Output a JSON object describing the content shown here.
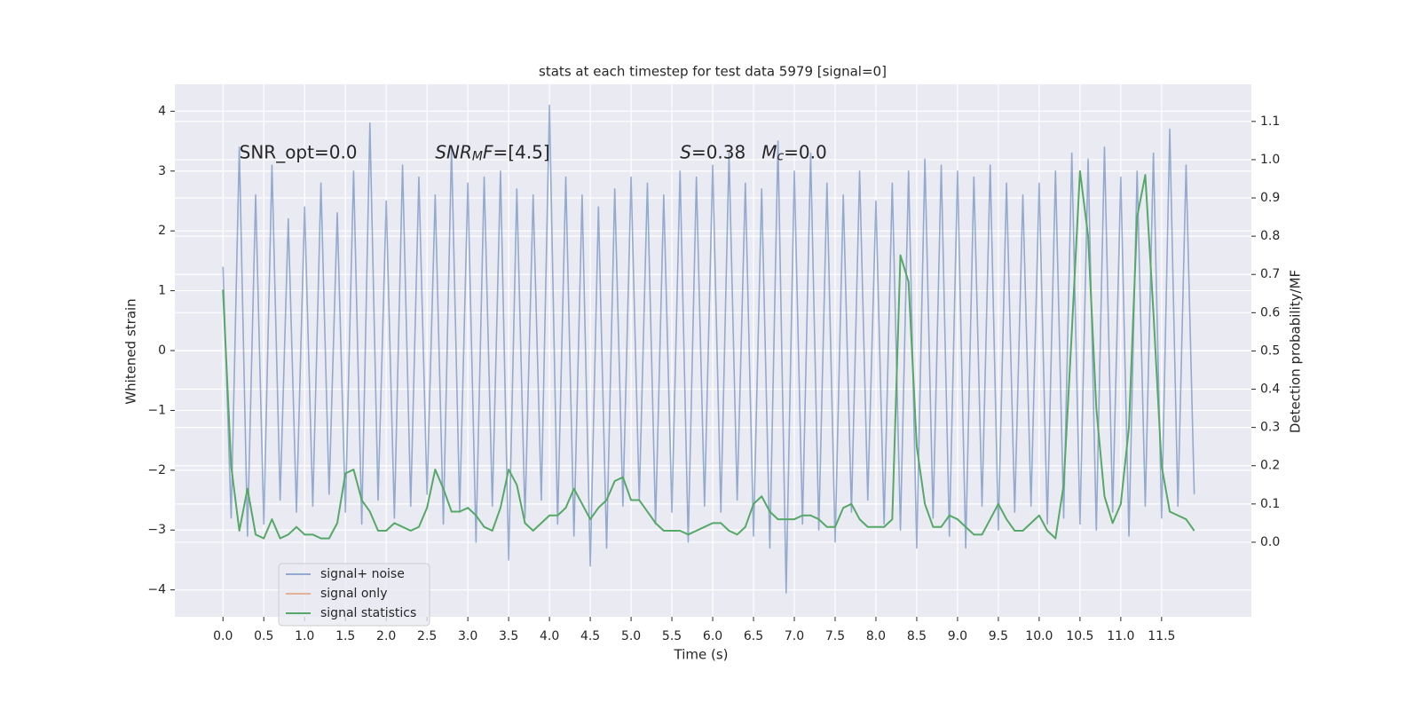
{
  "chart_data": {
    "type": "line",
    "title": "stats at each timestep for test data 5979 [signal=0]",
    "xlabel": "Time (s)",
    "ylabel": "Whitened strain",
    "y2label": "Detection probability/MF",
    "x": [
      0,
      0.1,
      0.2,
      0.3,
      0.4,
      0.5,
      0.6,
      0.7,
      0.8,
      0.9,
      1,
      1.1,
      1.2,
      1.3,
      1.4,
      1.5,
      1.6,
      1.7,
      1.8,
      1.9,
      2,
      2.1,
      2.2,
      2.3,
      2.4,
      2.5,
      2.6,
      2.7,
      2.8,
      2.9,
      3,
      3.1,
      3.2,
      3.3,
      3.4,
      3.5,
      3.6,
      3.7,
      3.8,
      3.9,
      4,
      4.1,
      4.2,
      4.3,
      4.4,
      4.5,
      4.6,
      4.7,
      4.8,
      4.9,
      5,
      5.1,
      5.2,
      5.3,
      5.4,
      5.5,
      5.6,
      5.7,
      5.8,
      5.9,
      6,
      6.1,
      6.2,
      6.3,
      6.4,
      6.5,
      6.6,
      6.7,
      6.8,
      6.9,
      7,
      7.1,
      7.2,
      7.3,
      7.4,
      7.5,
      7.6,
      7.7,
      7.8,
      7.9,
      8,
      8.1,
      8.2,
      8.3,
      8.4,
      8.5,
      8.6,
      8.7,
      8.8,
      8.9,
      9,
      9.1,
      9.2,
      9.3,
      9.4,
      9.5,
      9.6,
      9.7,
      9.8,
      9.9,
      10,
      10.1,
      10.2,
      10.3,
      10.4,
      10.5,
      10.6,
      10.7,
      10.8,
      10.9,
      11,
      11.1,
      11.2,
      11.3,
      11.4,
      11.5,
      11.6,
      11.7,
      11.8,
      11.9
    ],
    "series": [
      {
        "name": "signal+ noise",
        "color": "#4c72b0",
        "alpha": 0.55,
        "axis": "y",
        "values": [
          1.4,
          -2.8,
          3.4,
          -3.1,
          2.6,
          -2.9,
          3.1,
          -2.5,
          2.2,
          -2.7,
          2.4,
          -2.6,
          2.8,
          -2.4,
          2.3,
          -2.7,
          3.0,
          -2.9,
          3.8,
          -2.5,
          2.5,
          -2.8,
          3.1,
          -2.6,
          2.9,
          -2.4,
          2.6,
          -2.9,
          3.4,
          -2.7,
          2.8,
          -3.2,
          2.9,
          -2.6,
          3.0,
          -3.5,
          2.7,
          -2.8,
          2.6,
          -2.5,
          4.1,
          -2.9,
          2.9,
          -3.1,
          2.6,
          -3.6,
          2.4,
          -3.3,
          2.7,
          -2.6,
          2.9,
          -2.5,
          2.8,
          -2.9,
          2.6,
          -2.7,
          3.0,
          -3.2,
          2.9,
          -2.6,
          3.1,
          -2.7,
          3.3,
          -2.5,
          2.8,
          -3.1,
          2.7,
          -3.3,
          3.5,
          -4.05,
          3.0,
          -2.9,
          3.3,
          -3.0,
          2.8,
          -3.2,
          2.6,
          -2.7,
          3.0,
          -2.5,
          2.5,
          -2.9,
          2.8,
          -3.0,
          3.0,
          -3.3,
          3.2,
          -2.8,
          3.1,
          -3.1,
          3.0,
          -3.3,
          2.9,
          -2.6,
          3.1,
          -3.0,
          2.8,
          -2.7,
          2.6,
          -2.6,
          2.8,
          -2.9,
          3.0,
          -2.8,
          3.3,
          -2.9,
          3.2,
          -3.0,
          3.4,
          -2.7,
          2.9,
          -3.1,
          3.0,
          -2.6,
          3.3,
          -2.8,
          3.7,
          -2.6,
          3.1,
          -2.4
        ]
      },
      {
        "name": "signal only",
        "color": "#dd8452",
        "alpha": 0.55,
        "axis": "y"
      },
      {
        "name": "signal statistics",
        "color": "#55a868",
        "alpha": 1,
        "axis": "y2",
        "values": [
          0.66,
          0.2,
          0.03,
          0.14,
          0.02,
          0.01,
          0.06,
          0.01,
          0.02,
          0.04,
          0.02,
          0.02,
          0.01,
          0.01,
          0.05,
          0.18,
          0.19,
          0.11,
          0.08,
          0.03,
          0.03,
          0.05,
          0.04,
          0.03,
          0.04,
          0.09,
          0.19,
          0.14,
          0.08,
          0.08,
          0.09,
          0.07,
          0.04,
          0.03,
          0.09,
          0.19,
          0.15,
          0.05,
          0.03,
          0.05,
          0.07,
          0.07,
          0.09,
          0.14,
          0.1,
          0.06,
          0.09,
          0.11,
          0.16,
          0.17,
          0.11,
          0.11,
          0.08,
          0.05,
          0.03,
          0.03,
          0.03,
          0.02,
          0.03,
          0.04,
          0.05,
          0.05,
          0.03,
          0.02,
          0.04,
          0.1,
          0.12,
          0.08,
          0.06,
          0.06,
          0.06,
          0.07,
          0.07,
          0.06,
          0.04,
          0.04,
          0.09,
          0.1,
          0.06,
          0.04,
          0.04,
          0.04,
          0.06,
          0.75,
          0.68,
          0.25,
          0.1,
          0.04,
          0.04,
          0.07,
          0.06,
          0.04,
          0.02,
          0.02,
          0.06,
          0.1,
          0.06,
          0.03,
          0.03,
          0.05,
          0.07,
          0.03,
          0.01,
          0.15,
          0.55,
          0.97,
          0.8,
          0.35,
          0.12,
          0.05,
          0.1,
          0.3,
          0.85,
          0.96,
          0.6,
          0.2,
          0.08,
          0.07,
          0.06,
          0.03
        ]
      }
    ],
    "annotations": [
      {
        "x": 0.2,
        "y": 3.3,
        "parts": [
          {
            "text": "SNR_opt=0.0",
            "style": "normal"
          }
        ]
      },
      {
        "x": 2.6,
        "y": 3.3,
        "parts": [
          {
            "text": "SNR",
            "style": "italic"
          },
          {
            "text": "M",
            "style": "sub"
          },
          {
            "text": "F",
            "style": "italic"
          },
          {
            "text": "=[4.5]",
            "style": "normal"
          }
        ]
      },
      {
        "x": 5.6,
        "y": 3.3,
        "parts": [
          {
            "text": "S",
            "style": "italic"
          },
          {
            "text": "=0.38",
            "style": "normal"
          }
        ]
      },
      {
        "x": 6.6,
        "y": 3.3,
        "parts": [
          {
            "text": "M",
            "style": "italic"
          },
          {
            "text": "c",
            "style": "sub"
          },
          {
            "text": "=0.0",
            "style": "normal"
          }
        ]
      }
    ],
    "xlim": [
      -0.59,
      12.6
    ],
    "ylim": [
      -4.45,
      4.45
    ],
    "y2lim": [
      -0.195,
      1.197
    ],
    "xticks": [
      {
        "value": 0,
        "label": "0.0"
      },
      {
        "value": 0.5,
        "label": "0.5"
      },
      {
        "value": 1,
        "label": "1.0"
      },
      {
        "value": 1.5,
        "label": "1.5"
      },
      {
        "value": 2,
        "label": "2.0"
      },
      {
        "value": 2.5,
        "label": "2.5"
      },
      {
        "value": 3,
        "label": "3.0"
      },
      {
        "value": 3.5,
        "label": "3.5"
      },
      {
        "value": 4,
        "label": "4.0"
      },
      {
        "value": 4.5,
        "label": "4.5"
      },
      {
        "value": 5,
        "label": "5.0"
      },
      {
        "value": 5.5,
        "label": "5.5"
      },
      {
        "value": 6,
        "label": "6.0"
      },
      {
        "value": 6.5,
        "label": "6.5"
      },
      {
        "value": 7,
        "label": "7.0"
      },
      {
        "value": 7.5,
        "label": "7.5"
      },
      {
        "value": 8,
        "label": "8.0"
      },
      {
        "value": 8.5,
        "label": "8.5"
      },
      {
        "value": 9,
        "label": "9.0"
      },
      {
        "value": 9.5,
        "label": "9.5"
      },
      {
        "value": 10,
        "label": "10.0"
      },
      {
        "value": 10.5,
        "label": "10.5"
      },
      {
        "value": 11,
        "label": "11.0"
      },
      {
        "value": 11.5,
        "label": "11.5"
      }
    ],
    "yticks": [
      {
        "value": -4,
        "label": "−4"
      },
      {
        "value": -3,
        "label": "−3"
      },
      {
        "value": -2,
        "label": "−2"
      },
      {
        "value": -1,
        "label": "−1"
      },
      0,
      1,
      2,
      3,
      4
    ],
    "y2ticks": [
      {
        "value": 0,
        "label": "0.0"
      },
      {
        "value": 0.1,
        "label": "0.1"
      },
      {
        "value": 0.2,
        "label": "0.2"
      },
      {
        "value": 0.3,
        "label": "0.3"
      },
      {
        "value": 0.4,
        "label": "0.4"
      },
      {
        "value": 0.5,
        "label": "0.5"
      },
      {
        "value": 0.6,
        "label": "0.6"
      },
      {
        "value": 0.7,
        "label": "0.7"
      },
      {
        "value": 0.8,
        "label": "0.8"
      },
      {
        "value": 0.9,
        "label": "0.9"
      },
      {
        "value": 1,
        "label": "1.0"
      },
      {
        "value": 1.1,
        "label": "1.1"
      }
    ],
    "grid": true,
    "legend": "lower left",
    "background": "#eaeaf2"
  }
}
